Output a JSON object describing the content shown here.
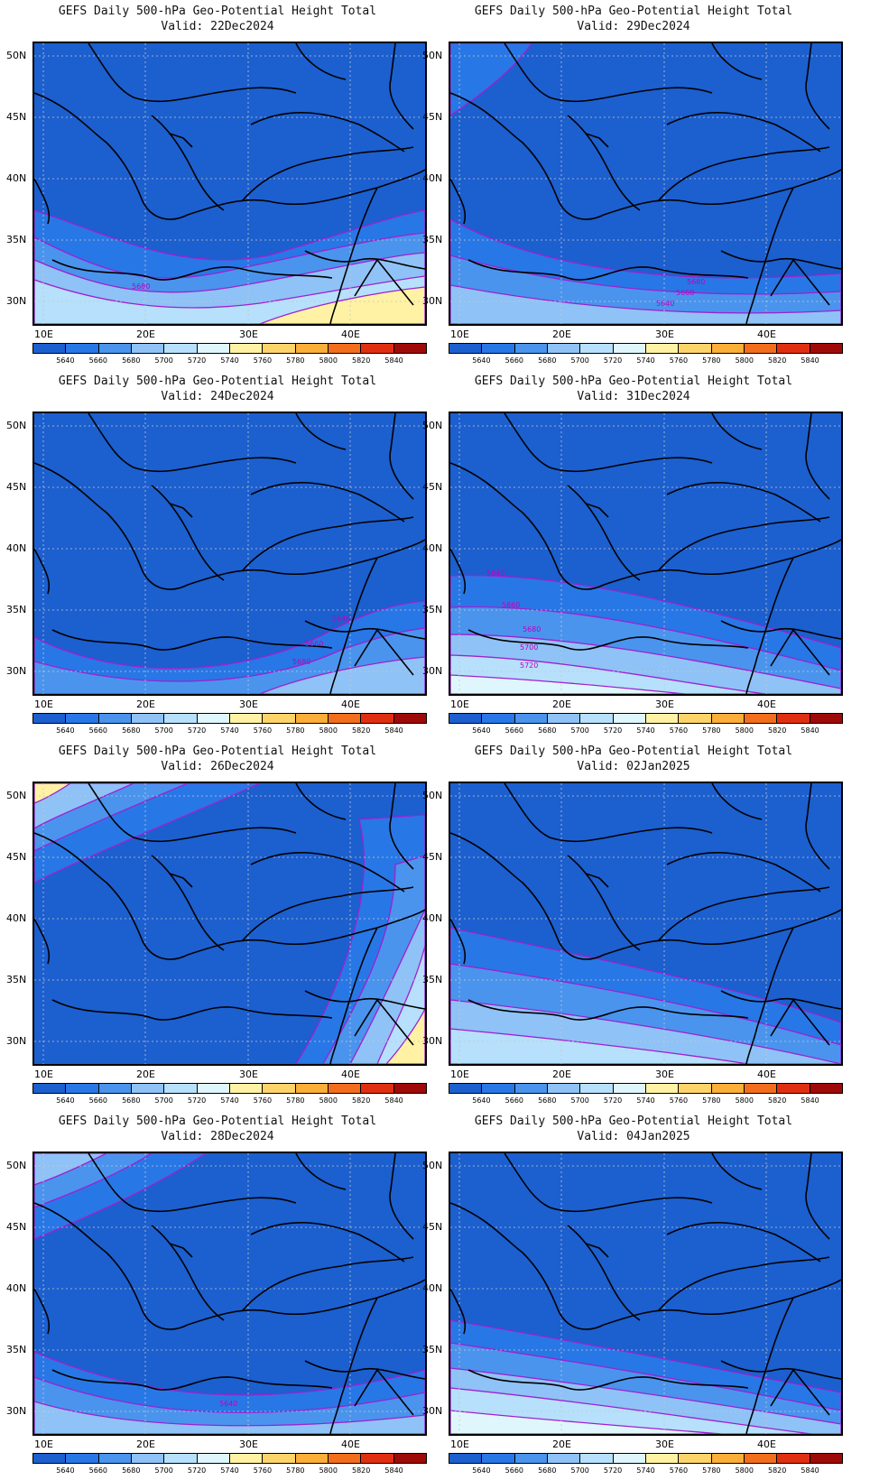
{
  "title_text": "GEFS Daily 500-hPa Geo-Potential Height Total",
  "lat_labels": [
    "50N",
    "45N",
    "40N",
    "35N",
    "30N"
  ],
  "lon_labels": [
    "10E",
    "20E",
    "30E",
    "40E"
  ],
  "colorbar": {
    "labels": [
      "5640",
      "5660",
      "5680",
      "5700",
      "5720",
      "5740",
      "5760",
      "5780",
      "5800",
      "5820",
      "5840"
    ],
    "colors": [
      "#1c5fcf",
      "#2877e6",
      "#4a94ee",
      "#8fc2f6",
      "#b6e0fb",
      "#dff6fd",
      "#fff2a4",
      "#fdd46a",
      "#fbae38",
      "#f36e1c",
      "#e02f10",
      "#9e0a08"
    ]
  },
  "panels": [
    {
      "valid": "Valid: 22Dec2024",
      "contour_labels": [
        "5680"
      ]
    },
    {
      "valid": "Valid: 29Dec2024",
      "contour_labels": [
        "5680",
        "5660",
        "5640"
      ]
    },
    {
      "valid": "Valid: 24Dec2024",
      "contour_labels": [
        "5640",
        "5660",
        "5680"
      ]
    },
    {
      "valid": "Valid: 31Dec2024",
      "contour_labels": [
        "5640",
        "5660",
        "5680",
        "5700",
        "5720"
      ]
    },
    {
      "valid": "Valid: 26Dec2024",
      "contour_labels": []
    },
    {
      "valid": "Valid: 02Jan2025",
      "contour_labels": []
    },
    {
      "valid": "Valid: 28Dec2024",
      "contour_labels": [
        "5640"
      ]
    },
    {
      "valid": "Valid: 04Jan2025",
      "contour_labels": []
    }
  ]
}
